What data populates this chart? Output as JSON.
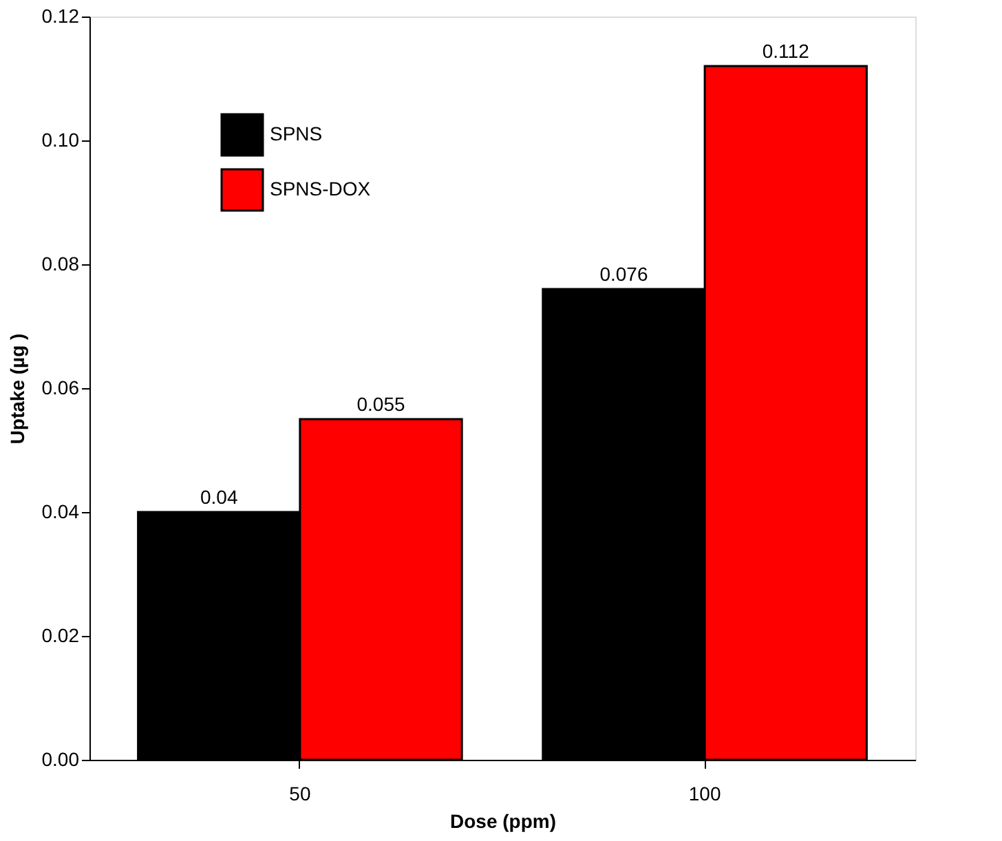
{
  "chart_data": {
    "type": "bar",
    "xlabel": "Dose (ppm)",
    "ylabel": "Uptake (µg )",
    "categories": [
      "50",
      "100"
    ],
    "series": [
      {
        "name": "SPNS",
        "color": "#000000",
        "values": [
          0.04,
          0.076
        ]
      },
      {
        "name": "SPNS-DOX",
        "color": "#ff0000",
        "values": [
          0.055,
          0.112
        ]
      }
    ],
    "ylim": [
      0,
      0.12
    ],
    "yticks": [
      {
        "value": 0,
        "label": "0.00"
      },
      {
        "value": 0.02,
        "label": "0.02"
      },
      {
        "value": 0.04,
        "label": "0.04"
      },
      {
        "value": 0.06,
        "label": "0.06"
      },
      {
        "value": 0.08,
        "label": "0.08"
      },
      {
        "value": 0.1,
        "label": "0.10"
      },
      {
        "value": 0.12,
        "label": "0.12"
      }
    ],
    "data_labels": true,
    "grid": false,
    "legend": "top left"
  }
}
